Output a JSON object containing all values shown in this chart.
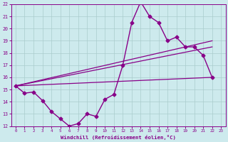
{
  "xlabel": "Windchill (Refroidissement éolien,°C)",
  "xlim": [
    -0.5,
    23.5
  ],
  "ylim": [
    12,
    22
  ],
  "yticks": [
    12,
    13,
    14,
    15,
    16,
    17,
    18,
    19,
    20,
    21,
    22
  ],
  "xticks": [
    0,
    1,
    2,
    3,
    4,
    5,
    6,
    7,
    8,
    9,
    10,
    11,
    12,
    13,
    14,
    15,
    16,
    17,
    18,
    19,
    20,
    21,
    22,
    23
  ],
  "background_color": "#cdeaed",
  "line_color": "#880088",
  "grid_color": "#aacccc",
  "main_series_x": [
    0,
    1,
    2,
    3,
    4,
    5,
    6,
    7,
    8,
    9,
    10,
    11,
    12,
    13,
    14,
    15,
    16,
    17,
    18,
    19,
    20,
    21,
    22
  ],
  "main_series_y": [
    15.3,
    14.7,
    14.8,
    14.1,
    13.2,
    12.6,
    12.0,
    12.2,
    13.0,
    12.8,
    14.2,
    14.6,
    17.0,
    20.5,
    22.2,
    21.0,
    20.5,
    19.0,
    19.3,
    18.5,
    18.5,
    17.8,
    16.0
  ],
  "trend_lines": [
    {
      "x": [
        0,
        22
      ],
      "y": [
        15.3,
        19.0
      ]
    },
    {
      "x": [
        0,
        22
      ],
      "y": [
        15.3,
        18.5
      ]
    },
    {
      "x": [
        0,
        22
      ],
      "y": [
        15.3,
        16.0
      ]
    }
  ]
}
